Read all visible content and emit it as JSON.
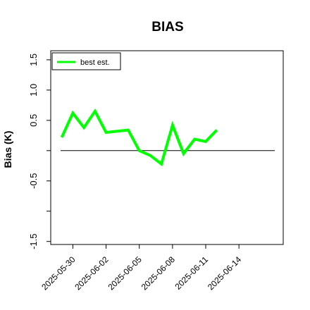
{
  "chart_data": {
    "type": "line",
    "title": "BIAS",
    "xlabel": "",
    "ylabel": "Bias (K)",
    "x_dates": [
      "2025-05-29",
      "2025-05-30",
      "2025-05-31",
      "2025-06-01",
      "2025-06-02",
      "2025-06-03",
      "2025-06-04",
      "2025-06-05",
      "2025-06-06",
      "2025-06-07",
      "2025-06-08",
      "2025-06-09",
      "2025-06-10",
      "2025-06-11",
      "2025-06-12"
    ],
    "series": [
      {
        "name": "best est.",
        "color": "#00ff00",
        "values": [
          0.22,
          0.62,
          0.38,
          0.65,
          0.3,
          0.32,
          0.34,
          0.0,
          -0.08,
          -0.22,
          0.42,
          -0.05,
          0.19,
          0.15,
          0.34
        ]
      }
    ],
    "reference_line": {
      "y": 0,
      "color": "#000000"
    },
    "xlim": [
      "2025-05-28",
      "2025-06-18"
    ],
    "ylim": [
      -1.55,
      1.65
    ],
    "x_tick_labels": [
      "2025-05-30",
      "2025-06-02",
      "2025-06-05",
      "2025-06-08",
      "2025-06-11",
      "2025-06-14"
    ],
    "y_ticks": [
      -1.5,
      -1.0,
      -0.5,
      0.0,
      0.5,
      1.0,
      1.5
    ],
    "y_tick_labels": [
      "-1.5",
      "",
      "-0.5",
      "",
      "0.5",
      "1.0",
      "1.5"
    ],
    "legend_position": "top-left",
    "grid": false
  }
}
